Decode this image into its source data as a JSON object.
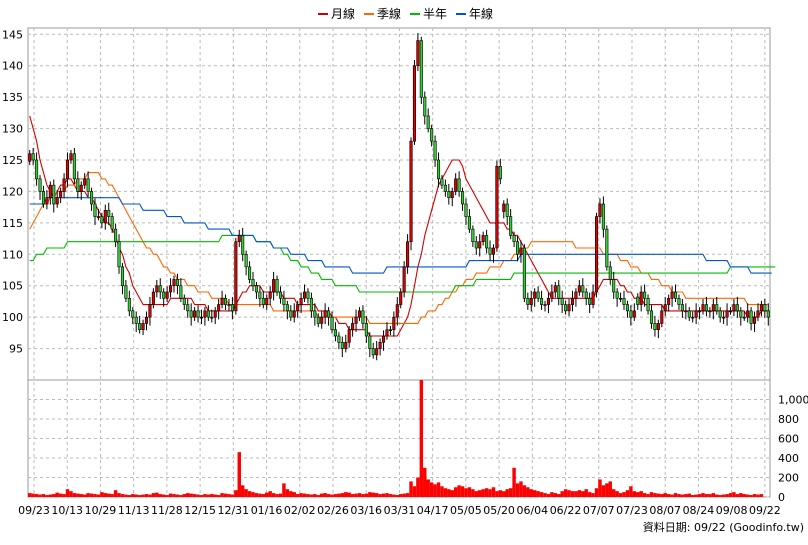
{
  "chart_data": {
    "type": "candlestick",
    "legend": [
      {
        "name": "月線",
        "color": "#cc0000"
      },
      {
        "name": "季線",
        "color": "#ff6600"
      },
      {
        "name": "半年",
        "color": "#00bb00"
      },
      {
        "name": "年線",
        "color": "#0055cc"
      }
    ],
    "colors": {
      "up": "#dd0000",
      "down": "#33cc33",
      "volume": "#ff0000"
    },
    "price_axis": {
      "ylim": [
        90,
        146
      ],
      "ticks": [
        95,
        100,
        105,
        110,
        115,
        120,
        125,
        130,
        135,
        140,
        145
      ]
    },
    "volume_axis": {
      "ylim": [
        0,
        1200
      ],
      "ticks": [
        0,
        200,
        400,
        600,
        800,
        1000
      ],
      "tick_labels": [
        "0",
        "200",
        "400",
        "600",
        "800",
        "1,000"
      ]
    },
    "x_tick_labels": [
      "09/23",
      "10/13",
      "10/29",
      "11/13",
      "11/28",
      "12/15",
      "12/31",
      "01/16",
      "02/02",
      "02/26",
      "03/16",
      "03/31",
      "04/17",
      "05/05",
      "05/20",
      "06/04",
      "06/22",
      "07/07",
      "07/23",
      "08/07",
      "08/24",
      "09/08",
      "09/22"
    ],
    "grid": true,
    "closes": [
      126,
      125,
      122,
      120,
      118,
      119,
      121,
      118,
      119,
      120,
      122,
      125,
      126,
      122,
      120,
      121,
      122,
      120,
      118,
      116,
      116,
      115,
      117,
      116,
      114,
      112,
      108,
      105,
      103,
      101,
      100,
      99,
      98,
      99,
      100,
      102,
      104,
      105,
      104,
      103,
      104,
      105,
      106,
      105,
      103,
      102,
      101,
      100,
      101,
      100,
      100,
      101,
      100,
      100,
      101,
      102,
      103,
      102,
      102,
      101,
      112,
      113,
      110,
      108,
      106,
      105,
      104,
      103,
      102,
      103,
      104,
      106,
      104,
      103,
      102,
      101,
      100,
      101,
      102,
      103,
      104,
      103,
      101,
      100,
      99,
      100,
      101,
      100,
      98,
      97,
      96,
      95,
      96,
      98,
      99,
      100,
      101,
      99,
      97,
      95,
      94,
      95,
      96,
      97,
      98,
      98,
      100,
      102,
      104,
      108,
      112,
      128,
      140,
      144,
      135,
      132,
      130,
      128,
      125,
      122,
      121,
      120,
      119,
      120,
      122,
      120,
      118,
      116,
      114,
      112,
      111,
      112,
      113,
      111,
      110,
      111,
      124,
      122,
      118,
      116,
      113,
      112,
      110,
      111,
      103,
      102,
      103,
      104,
      103,
      102,
      102,
      103,
      104,
      105,
      103,
      102,
      101,
      102,
      103,
      104,
      105,
      104,
      103,
      102,
      104,
      116,
      118,
      114,
      108,
      106,
      104,
      103,
      103,
      102,
      101,
      100,
      101,
      102,
      104,
      103,
      101,
      99,
      98,
      99,
      101,
      102,
      103,
      104,
      103,
      102,
      101,
      101,
      100,
      100,
      101,
      101,
      102,
      101,
      101,
      102,
      101,
      100,
      100,
      101,
      101,
      102,
      101,
      100,
      100,
      101,
      99,
      100,
      101,
      102,
      101,
      100
    ],
    "ma_month": [
      132,
      130,
      128,
      125,
      123,
      121,
      120,
      119,
      120,
      121,
      121,
      122,
      122,
      121,
      120,
      120,
      120,
      119,
      119,
      118,
      117,
      116,
      115,
      115,
      114,
      113,
      111,
      110,
      108,
      107,
      105,
      104,
      103,
      102,
      102,
      102,
      102,
      102,
      102,
      102,
      102,
      103,
      103,
      103,
      103,
      103,
      103,
      103,
      102,
      102,
      102,
      102,
      101,
      101,
      101,
      101,
      101,
      101,
      101,
      101,
      102,
      103,
      104,
      104,
      105,
      105,
      105,
      105,
      104,
      104,
      104,
      104,
      104,
      104,
      103,
      103,
      103,
      103,
      102,
      102,
      102,
      102,
      102,
      102,
      101,
      101,
      101,
      101,
      100,
      100,
      99,
      99,
      99,
      98,
      98,
      98,
      98,
      98,
      98,
      97,
      97,
      97,
      97,
      97,
      97,
      97,
      97,
      97,
      98,
      99,
      100,
      102,
      105,
      108,
      110,
      113,
      115,
      117,
      119,
      121,
      122,
      123,
      124,
      125,
      125,
      125,
      124,
      122,
      121,
      120,
      119,
      118,
      117,
      116,
      115,
      115,
      115,
      115,
      115,
      114,
      114,
      113,
      113,
      112,
      111,
      110,
      109,
      108,
      107,
      106,
      105,
      104,
      103,
      103,
      103,
      103,
      103,
      103,
      103,
      103,
      103,
      103,
      103,
      103,
      103,
      104,
      105,
      106,
      106,
      106,
      106,
      106,
      105,
      105,
      104,
      104,
      103,
      103,
      103,
      102,
      102,
      102,
      102,
      102,
      102,
      101,
      101,
      101,
      101,
      101,
      101,
      101,
      101,
      101,
      101,
      101,
      101,
      101,
      101,
      101,
      101,
      101,
      101,
      101,
      101,
      101,
      101,
      101,
      101,
      100,
      100,
      100,
      100,
      101,
      101,
      101
    ],
    "ma_quarter": [
      114,
      115,
      116,
      117,
      118,
      118,
      119,
      119,
      120,
      120,
      120,
      121,
      121,
      121,
      122,
      122,
      122,
      123,
      123,
      123,
      123,
      122,
      122,
      121,
      121,
      120,
      119,
      118,
      117,
      116,
      115,
      114,
      113,
      112,
      111,
      111,
      110,
      110,
      109,
      108,
      108,
      107,
      107,
      106,
      106,
      106,
      105,
      105,
      105,
      104,
      104,
      104,
      104,
      103,
      103,
      103,
      103,
      103,
      102,
      102,
      102,
      102,
      102,
      102,
      102,
      102,
      102,
      102,
      102,
      102,
      102,
      101,
      101,
      101,
      101,
      101,
      101,
      101,
      101,
      101,
      101,
      101,
      101,
      101,
      100,
      100,
      100,
      100,
      100,
      100,
      100,
      100,
      100,
      100,
      100,
      100,
      100,
      100,
      100,
      99,
      99,
      99,
      99,
      99,
      99,
      99,
      99,
      99,
      99,
      99,
      99,
      99,
      99,
      99,
      100,
      100,
      101,
      101,
      101,
      102,
      102,
      103,
      103,
      104,
      104,
      105,
      105,
      106,
      106,
      106,
      107,
      107,
      107,
      107,
      108,
      108,
      108,
      108,
      109,
      109,
      109,
      110,
      110,
      111,
      111,
      111,
      112,
      112,
      112,
      112,
      112,
      112,
      112,
      112,
      112,
      112,
      112,
      112,
      112,
      111,
      111,
      111,
      111,
      111,
      111,
      111,
      111,
      110,
      110,
      110,
      110,
      110,
      109,
      109,
      109,
      108,
      108,
      108,
      107,
      107,
      107,
      106,
      106,
      106,
      105,
      105,
      105,
      104,
      104,
      104,
      104,
      103,
      103,
      103,
      103,
      103,
      103,
      103,
      103,
      103,
      103,
      103,
      103,
      103,
      103,
      103,
      103,
      103,
      103,
      102,
      102,
      102,
      102,
      102,
      102,
      102
    ],
    "ma_half": [
      109,
      109,
      110,
      110,
      110,
      111,
      111,
      111,
      111,
      111,
      111,
      112,
      112,
      112,
      112,
      112,
      112,
      112,
      112,
      112,
      112,
      112,
      112,
      112,
      112,
      112,
      112,
      112,
      112,
      112,
      112,
      112,
      112,
      112,
      112,
      112,
      112,
      112,
      112,
      112,
      112,
      112,
      112,
      112,
      112,
      112,
      112,
      112,
      112,
      112,
      112,
      112,
      112,
      112,
      112,
      112,
      113,
      113,
      113,
      113,
      113,
      113,
      113,
      113,
      113,
      113,
      112,
      112,
      112,
      112,
      112,
      111,
      111,
      111,
      110,
      110,
      109,
      109,
      109,
      108,
      108,
      108,
      107,
      107,
      107,
      106,
      106,
      106,
      106,
      105,
      105,
      105,
      105,
      105,
      105,
      105,
      104,
      104,
      104,
      104,
      104,
      104,
      104,
      104,
      104,
      104,
      104,
      104,
      104,
      104,
      104,
      104,
      104,
      104,
      104,
      104,
      104,
      104,
      104,
      104,
      104,
      104,
      104,
      104,
      105,
      105,
      105,
      105,
      105,
      105,
      106,
      106,
      106,
      106,
      106,
      106,
      106,
      106,
      106,
      106,
      106,
      107,
      107,
      107,
      107,
      107,
      107,
      107,
      107,
      107,
      107,
      107,
      107,
      107,
      107,
      107,
      107,
      107,
      107,
      107,
      107,
      107,
      107,
      107,
      107,
      107,
      107,
      107,
      107,
      107,
      107,
      107,
      107,
      107,
      107,
      107,
      107,
      107,
      107,
      107,
      107,
      107,
      107,
      107,
      107,
      107,
      107,
      107,
      107,
      107,
      107,
      107,
      107,
      107,
      107,
      107,
      107,
      107,
      107,
      107,
      107,
      107,
      107,
      107,
      108,
      108,
      108,
      108,
      108,
      108,
      108,
      108,
      108,
      108,
      108,
      108,
      108,
      108
    ],
    "ma_year": [
      118,
      118,
      118,
      118,
      118,
      119,
      119,
      119,
      119,
      119,
      119,
      119,
      119,
      119,
      119,
      119,
      119,
      119,
      119,
      119,
      119,
      119,
      119,
      119,
      119,
      119,
      119,
      118,
      118,
      118,
      118,
      118,
      118,
      117,
      117,
      117,
      117,
      117,
      117,
      117,
      116,
      116,
      116,
      116,
      116,
      115,
      115,
      115,
      115,
      115,
      115,
      115,
      114,
      114,
      114,
      114,
      114,
      114,
      114,
      113,
      113,
      113,
      113,
      113,
      113,
      113,
      112,
      112,
      112,
      112,
      112,
      111,
      111,
      111,
      111,
      111,
      110,
      110,
      110,
      110,
      110,
      109,
      109,
      109,
      109,
      109,
      108,
      108,
      108,
      108,
      108,
      108,
      108,
      108,
      107,
      107,
      107,
      107,
      107,
      107,
      107,
      107,
      107,
      107,
      108,
      108,
      108,
      108,
      108,
      108,
      108,
      108,
      108,
      108,
      108,
      108,
      108,
      108,
      108,
      108,
      108,
      108,
      108,
      108,
      108,
      108,
      108,
      108,
      109,
      109,
      109,
      109,
      109,
      109,
      109,
      109,
      109,
      109,
      109,
      109,
      109,
      109,
      109,
      110,
      110,
      110,
      110,
      110,
      110,
      110,
      110,
      110,
      110,
      110,
      110,
      110,
      110,
      110,
      110,
      110,
      110,
      110,
      110,
      110,
      110,
      110,
      110,
      110,
      110,
      110,
      110,
      110,
      110,
      110,
      110,
      110,
      110,
      110,
      110,
      110,
      110,
      110,
      110,
      110,
      110,
      110,
      110,
      110,
      110,
      110,
      110,
      110,
      110,
      110,
      110,
      110,
      110,
      109,
      109,
      109,
      109,
      109,
      109,
      109,
      108,
      108,
      108,
      108,
      108,
      108,
      107,
      107,
      107,
      107,
      107,
      107,
      107
    ],
    "gaps": [
      138,
      177
    ],
    "volume": [
      40,
      35,
      30,
      25,
      30,
      20,
      25,
      30,
      45,
      35,
      30,
      80,
      60,
      40,
      35,
      30,
      25,
      40,
      35,
      30,
      25,
      50,
      40,
      35,
      30,
      70,
      40,
      30,
      25,
      20,
      30,
      25,
      20,
      25,
      30,
      25,
      40,
      45,
      30,
      25,
      20,
      35,
      30,
      25,
      20,
      30,
      40,
      35,
      30,
      25,
      20,
      30,
      25,
      30,
      25,
      20,
      40,
      35,
      30,
      25,
      70,
      460,
      120,
      80,
      60,
      50,
      40,
      35,
      30,
      45,
      60,
      40,
      30,
      35,
      140,
      80,
      60,
      50,
      30,
      40,
      35,
      30,
      25,
      30,
      20,
      35,
      40,
      30,
      25,
      30,
      35,
      40,
      50,
      45,
      30,
      35,
      40,
      30,
      35,
      50,
      45,
      40,
      30,
      35,
      40,
      30,
      25,
      20,
      30,
      35,
      40,
      160,
      110,
      200,
      1200,
      300,
      180,
      150,
      130,
      150,
      110,
      90,
      80,
      70,
      100,
      120,
      110,
      90,
      100,
      80,
      60,
      70,
      80,
      90,
      80,
      100,
      60,
      70,
      60,
      80,
      90,
      300,
      140,
      160,
      120,
      100,
      80,
      70,
      60,
      50,
      40,
      30,
      50,
      40,
      30,
      60,
      80,
      70,
      60,
      60,
      70,
      60,
      80,
      50,
      40,
      90,
      180,
      120,
      140,
      160,
      80,
      60,
      40,
      50,
      70,
      110,
      60,
      50,
      60,
      40,
      30,
      50,
      40,
      35,
      30,
      40,
      30,
      25,
      40,
      30,
      25,
      30,
      35,
      20,
      25,
      30,
      40,
      30,
      30,
      40,
      25,
      20,
      25,
      30,
      40,
      50,
      30,
      40,
      30,
      25,
      20,
      30,
      25,
      30
    ],
    "source_label": "資料日期: 09/22  (Goodinfo.tw)"
  }
}
